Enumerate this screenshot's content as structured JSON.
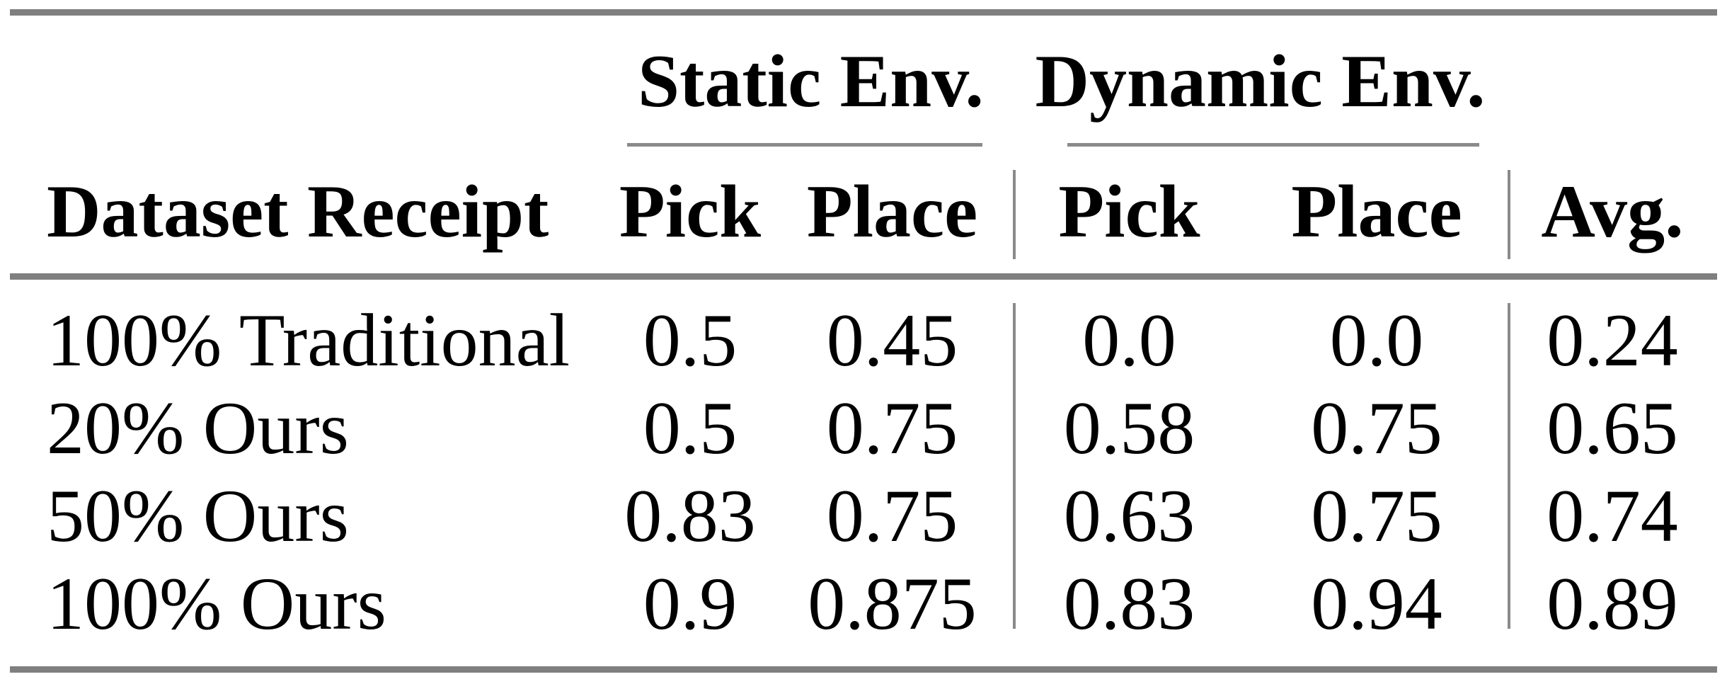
{
  "colors": {
    "background": "#ffffff",
    "text": "#000000",
    "rule_heavy": "#7f7f7f",
    "rule_light": "#8a8a8a"
  },
  "table": {
    "group_headers": {
      "static": "Static Env.",
      "dynamic": "Dynamic Env."
    },
    "columns": {
      "row_header": "Dataset Receipt",
      "static_pick": "Pick",
      "static_place": "Place",
      "dynamic_pick": "Pick",
      "dynamic_place": "Place",
      "avg": "Avg."
    },
    "rows": [
      {
        "label": "100% Traditional",
        "static_pick": "0.5",
        "static_place": "0.45",
        "dynamic_pick": "0.0",
        "dynamic_place": "0.0",
        "avg": "0.24"
      },
      {
        "label": "20% Ours",
        "static_pick": "0.5",
        "static_place": "0.75",
        "dynamic_pick": "0.58",
        "dynamic_place": "0.75",
        "avg": "0.65"
      },
      {
        "label": "50% Ours",
        "static_pick": "0.83",
        "static_place": "0.75",
        "dynamic_pick": "0.63",
        "dynamic_place": "0.75",
        "avg": "0.74"
      },
      {
        "label": "100% Ours",
        "static_pick": "0.9",
        "static_place": "0.875",
        "dynamic_pick": "0.83",
        "dynamic_place": "0.94",
        "avg": "0.89"
      }
    ]
  },
  "chart_data": {
    "type": "table",
    "column_groups": [
      "",
      "Static Env.",
      "Static Env.",
      "Dynamic Env.",
      "Dynamic Env.",
      ""
    ],
    "columns": [
      "Dataset Receipt",
      "Pick",
      "Place",
      "Pick",
      "Place",
      "Avg."
    ],
    "rows": [
      [
        "100% Traditional",
        0.5,
        0.45,
        0.0,
        0.0,
        0.24
      ],
      [
        "20% Ours",
        0.5,
        0.75,
        0.58,
        0.75,
        0.65
      ],
      [
        "50% Ours",
        0.83,
        0.75,
        0.63,
        0.75,
        0.74
      ],
      [
        "100% Ours",
        0.9,
        0.875,
        0.83,
        0.94,
        0.89
      ]
    ]
  }
}
